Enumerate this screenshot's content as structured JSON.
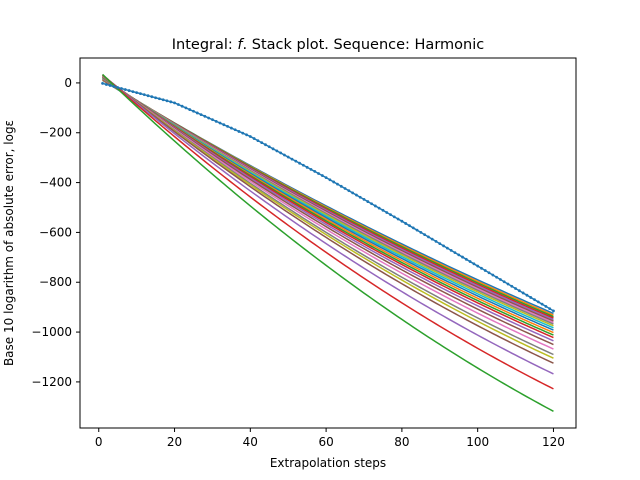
{
  "chart_data": {
    "type": "line",
    "title_prefix": "Integral: ",
    "title_f": "f",
    "title_suffix": ". Stack plot. Sequence: Harmonic",
    "xlabel": "Extrapolation steps",
    "ylabel": "Base 10 logarithm of absolute error, logε",
    "xlim": [
      -4.95,
      125.95
    ],
    "ylim": [
      -1385,
      100
    ],
    "xticks": [
      0,
      20,
      40,
      60,
      80,
      100,
      120
    ],
    "xtick_labels": [
      "0",
      "20",
      "40",
      "60",
      "80",
      "100",
      "120"
    ],
    "yticks": [
      0,
      -200,
      -400,
      -600,
      -800,
      -1000,
      -1200
    ],
    "ytick_labels": [
      "0",
      "−200",
      "−400",
      "−600",
      "−800",
      "−1000",
      "−1200"
    ],
    "grid": false,
    "legend": "none",
    "x_range": [
      1,
      120
    ],
    "lower_bound_series": {
      "x": [
        1,
        20,
        40,
        60,
        80,
        100,
        120
      ],
      "y": [
        -2,
        -80,
        -215,
        -380,
        -555,
        -735,
        -915
      ],
      "style": "dotted-markers",
      "color": "#1f77b4"
    },
    "series": [
      {
        "color": "#1f77b4",
        "y1": 10,
        "y120": -925,
        "curvature": 40
      },
      {
        "color": "#ff7f0e",
        "y1": 12,
        "y120": -932,
        "curvature": 42
      },
      {
        "color": "#2ca02c",
        "y1": 14,
        "y120": -938,
        "curvature": 44
      },
      {
        "color": "#d62728",
        "y1": 15,
        "y120": -944,
        "curvature": 46
      },
      {
        "color": "#9467bd",
        "y1": 16,
        "y120": -950,
        "curvature": 48
      },
      {
        "color": "#8c564b",
        "y1": 17,
        "y120": -956,
        "curvature": 50
      },
      {
        "color": "#e377c2",
        "y1": 18,
        "y120": -962,
        "curvature": 52
      },
      {
        "color": "#7f7f7f",
        "y1": 19,
        "y120": -968,
        "curvature": 54
      },
      {
        "color": "#bcbd22",
        "y1": 20,
        "y120": -975,
        "curvature": 56
      },
      {
        "color": "#17becf",
        "y1": 21,
        "y120": -983,
        "curvature": 58
      },
      {
        "color": "#1f77b4",
        "y1": 22,
        "y120": -992,
        "curvature": 60
      },
      {
        "color": "#ff7f0e",
        "y1": 23,
        "y120": -1002,
        "curvature": 62
      },
      {
        "color": "#2ca02c",
        "y1": 24,
        "y120": -1012,
        "curvature": 64
      },
      {
        "color": "#d62728",
        "y1": 25,
        "y120": -1022,
        "curvature": 66
      },
      {
        "color": "#9467bd",
        "y1": 26,
        "y120": -1035,
        "curvature": 68
      },
      {
        "color": "#8c564b",
        "y1": 27,
        "y120": -1050,
        "curvature": 70
      },
      {
        "color": "#e377c2",
        "y1": 28,
        "y120": -1068,
        "curvature": 72
      },
      {
        "color": "#7f7f7f",
        "y1": 29,
        "y120": -1090,
        "curvature": 74
      },
      {
        "color": "#bcbd22",
        "y1": 30,
        "y120": -1105,
        "curvature": 76
      },
      {
        "color": "#8c564b",
        "y1": 31,
        "y120": -1125,
        "curvature": 78
      },
      {
        "color": "#9467bd",
        "y1": 32,
        "y120": -1168,
        "curvature": 82
      },
      {
        "color": "#d62728",
        "y1": 33,
        "y120": -1228,
        "curvature": 88
      },
      {
        "color": "#2ca02c",
        "y1": 34,
        "y120": -1318,
        "curvature": 96
      }
    ]
  }
}
